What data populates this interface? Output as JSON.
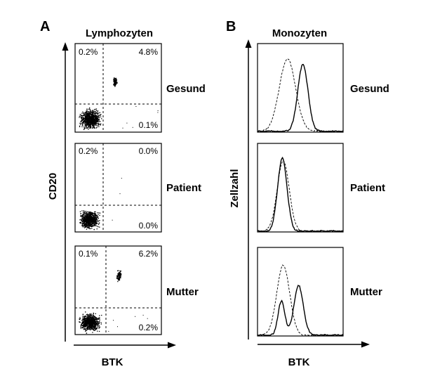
{
  "panel_a": {
    "letter": "A",
    "title": "Lymphozyten",
    "x_axis_label": "BTK",
    "y_axis_label": "CD20"
  },
  "panel_b": {
    "letter": "B",
    "title": "Monozyten",
    "x_axis_label": "BTK",
    "y_axis_label": "Zellzahl"
  },
  "rows": [
    {
      "label": "Gesund",
      "quadrants": {
        "upper_left": "0.2%",
        "upper_right": "4.8%",
        "lower_right": "0.1%"
      }
    },
    {
      "label": "Patient",
      "quadrants": {
        "upper_left": "0.2%",
        "upper_right": "0.0%",
        "lower_right": "0.0%"
      }
    },
    {
      "label": "Mutter",
      "quadrants": {
        "upper_left": "0.1%",
        "upper_right": "6.2%",
        "lower_right": "0.2%"
      }
    }
  ],
  "chart_data": [
    {
      "type": "scatter",
      "xlabel": "BTK",
      "ylabel": "CD20",
      "title": "Lymphozyten",
      "panels": [
        {
          "row": "Gesund",
          "quadrant_percent": {
            "upper_left": 0.2,
            "upper_right": 4.8,
            "lower_right": 0.1
          }
        },
        {
          "row": "Patient",
          "quadrant_percent": {
            "upper_left": 0.2,
            "upper_right": 0.0,
            "lower_right": 0.0
          }
        },
        {
          "row": "Mutter",
          "quadrant_percent": {
            "upper_left": 0.1,
            "upper_right": 6.2,
            "lower_right": 0.2
          }
        }
      ]
    },
    {
      "type": "line",
      "xlabel": "BTK",
      "ylabel": "Zellzahl",
      "title": "Monozyten",
      "panels": [
        {
          "row": "Gesund",
          "peaks": {
            "dashed": 0.35,
            "solid": 0.53
          }
        },
        {
          "row": "Patient",
          "peaks": {
            "dashed": 0.3,
            "solid": 0.29
          }
        },
        {
          "row": "Mutter",
          "peaks": {
            "dashed": 0.3,
            "solid": 0.48,
            "solid_minor": 0.28
          }
        }
      ]
    }
  ]
}
